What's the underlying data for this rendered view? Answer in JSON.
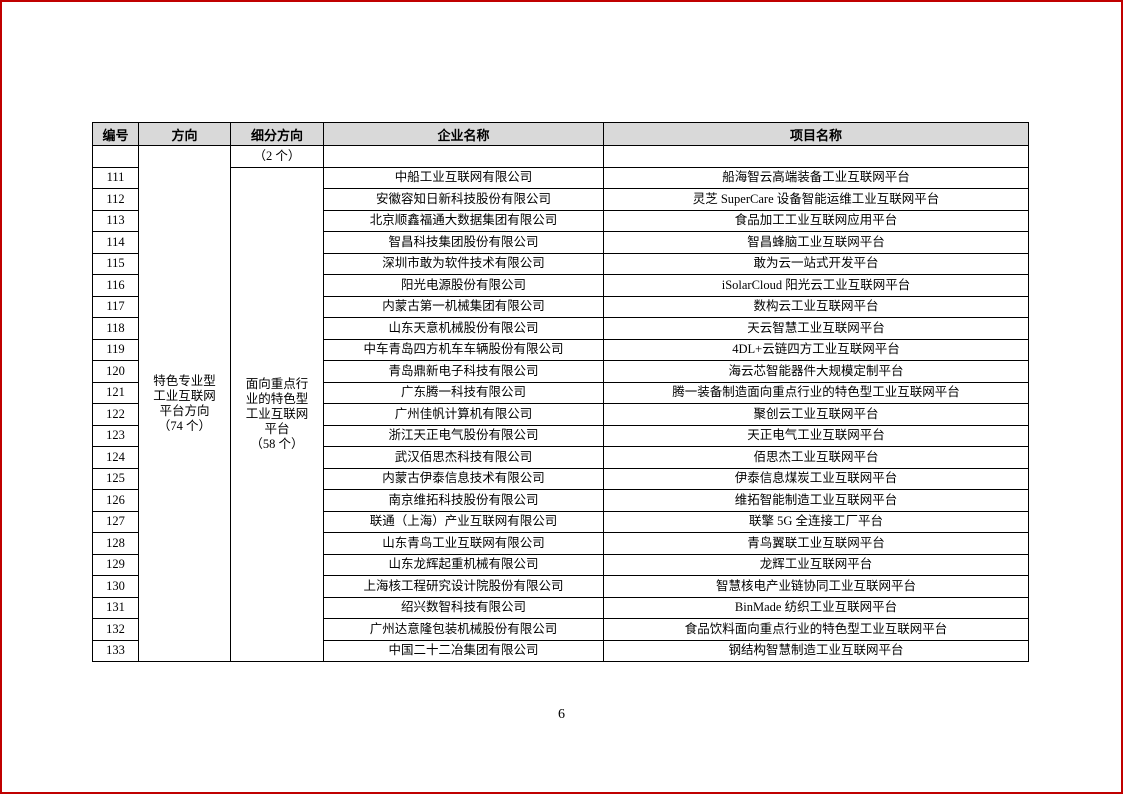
{
  "table": {
    "headers": [
      "编号",
      "方向",
      "细分方向",
      "企业名称",
      "项目名称"
    ],
    "carryover_row": {
      "no": "",
      "subdivision": "（2 个）",
      "company": "",
      "project": ""
    },
    "direction_cell": "特色专业型\n工业互联网\n平台方向\n（74 个）",
    "subdivision_cell": "面向重点行\n业的特色型\n工业互联网\n平台\n（58 个）",
    "rows": [
      {
        "no": "111",
        "company": "中船工业互联网有限公司",
        "project": "船海智云高端装备工业互联网平台"
      },
      {
        "no": "112",
        "company": "安徽容知日新科技股份有限公司",
        "project": "灵芝 SuperCare 设备智能运维工业互联网平台"
      },
      {
        "no": "113",
        "company": "北京顺鑫福通大数据集团有限公司",
        "project": "食品加工工业互联网应用平台"
      },
      {
        "no": "114",
        "company": "智昌科技集团股份有限公司",
        "project": "智昌蜂脑工业互联网平台"
      },
      {
        "no": "115",
        "company": "深圳市敢为软件技术有限公司",
        "project": "敢为云一站式开发平台"
      },
      {
        "no": "116",
        "company": "阳光电源股份有限公司",
        "project": "iSolarCloud 阳光云工业互联网平台"
      },
      {
        "no": "117",
        "company": "内蒙古第一机械集团有限公司",
        "project": "数构云工业互联网平台"
      },
      {
        "no": "118",
        "company": "山东天意机械股份有限公司",
        "project": "天云智慧工业互联网平台"
      },
      {
        "no": "119",
        "company": "中车青岛四方机车车辆股份有限公司",
        "project": "4DL+云链四方工业互联网平台"
      },
      {
        "no": "120",
        "company": "青岛鼎新电子科技有限公司",
        "project": "海云芯智能器件大规模定制平台"
      },
      {
        "no": "121",
        "company": "广东腾一科技有限公司",
        "project": "腾一装备制造面向重点行业的特色型工业互联网平台"
      },
      {
        "no": "122",
        "company": "广州佳帆计算机有限公司",
        "project": "聚创云工业互联网平台"
      },
      {
        "no": "123",
        "company": "浙江天正电气股份有限公司",
        "project": "天正电气工业互联网平台"
      },
      {
        "no": "124",
        "company": "武汉佰思杰科技有限公司",
        "project": "佰思杰工业互联网平台"
      },
      {
        "no": "125",
        "company": "内蒙古伊泰信息技术有限公司",
        "project": "伊泰信息煤炭工业互联网平台"
      },
      {
        "no": "126",
        "company": "南京维拓科技股份有限公司",
        "project": "维拓智能制造工业互联网平台"
      },
      {
        "no": "127",
        "company": "联通（上海）产业互联网有限公司",
        "project": "联擎 5G 全连接工厂平台"
      },
      {
        "no": "128",
        "company": "山东青鸟工业互联网有限公司",
        "project": "青鸟翼联工业互联网平台"
      },
      {
        "no": "129",
        "company": "山东龙辉起重机械有限公司",
        "project": "龙辉工业互联网平台"
      },
      {
        "no": "130",
        "company": "上海核工程研究设计院股份有限公司",
        "project": "智慧核电产业链协同工业互联网平台"
      },
      {
        "no": "131",
        "company": "绍兴数智科技有限公司",
        "project": "BinMade 纺织工业互联网平台"
      },
      {
        "no": "132",
        "company": "广州达意隆包装机械股份有限公司",
        "project": "食品饮料面向重点行业的特色型工业互联网平台"
      },
      {
        "no": "133",
        "company": "中国二十二冶集团有限公司",
        "project": "钢结构智慧制造工业互联网平台"
      }
    ]
  },
  "footer": {
    "page_number": "6"
  },
  "colors": {
    "header_bg": "#d9d9d9",
    "border": "#000000",
    "page_frame": "#c00000"
  }
}
